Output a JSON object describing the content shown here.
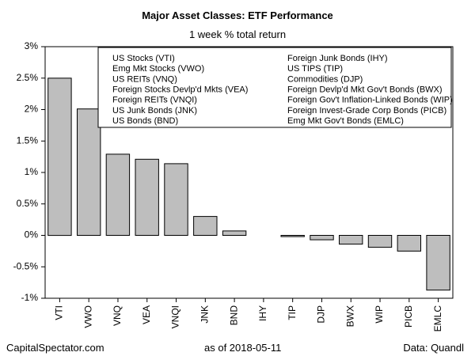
{
  "chart_data": {
    "type": "bar",
    "title": "Major Asset Classes: ETF Performance",
    "subtitle": "1 week % total return",
    "categories": [
      "VTI",
      "VWO",
      "VNQ",
      "VEA",
      "VNQI",
      "JNK",
      "BND",
      "IHY",
      "TIP",
      "DJP",
      "BWX",
      "WIP",
      "PICB",
      "EMLC"
    ],
    "values": [
      2.5,
      2.01,
      1.29,
      1.21,
      1.14,
      0.3,
      0.07,
      0.0,
      -0.02,
      -0.07,
      -0.14,
      -0.19,
      -0.25,
      -0.87
    ],
    "ylim": [
      -1,
      3
    ],
    "yticks": [
      -1,
      -0.5,
      0,
      0.5,
      1,
      1.5,
      2,
      2.5,
      3
    ],
    "ytick_labels": [
      "-1%",
      "-0.5%",
      "0%",
      "0.5%",
      "1%",
      "1.5%",
      "2%",
      "2.5%",
      "3%"
    ],
    "grid": false,
    "legend_placement": "top-right",
    "legend_left": [
      "US Stocks (VTI)",
      "Emg Mkt Stocks (VWO)",
      "US REITs (VNQ)",
      "Foreign Stocks Devlp'd Mkts (VEA)",
      "Foreign REITs (VNQI)",
      "US Junk Bonds (JNK)",
      "US Bonds (BND)"
    ],
    "legend_right": [
      "Foreign Junk Bonds (IHY)",
      "US TIPS (TIP)",
      "Commodities (DJP)",
      "Foreign Devlp'd Mkt Gov't Bonds (BWX)",
      "Foreign Gov't Inflation-Linked Bonds (WIP)",
      "Foreign Invest-Grade Corp Bonds (PICB)",
      "Emg Mkt Gov't Bonds (EMLC)"
    ],
    "bar_color": "#bebebe"
  },
  "footer": {
    "source": "CapitalSpectator.com",
    "date": "as of   2018-05-11",
    "data_credit": "Data: Quandl"
  }
}
